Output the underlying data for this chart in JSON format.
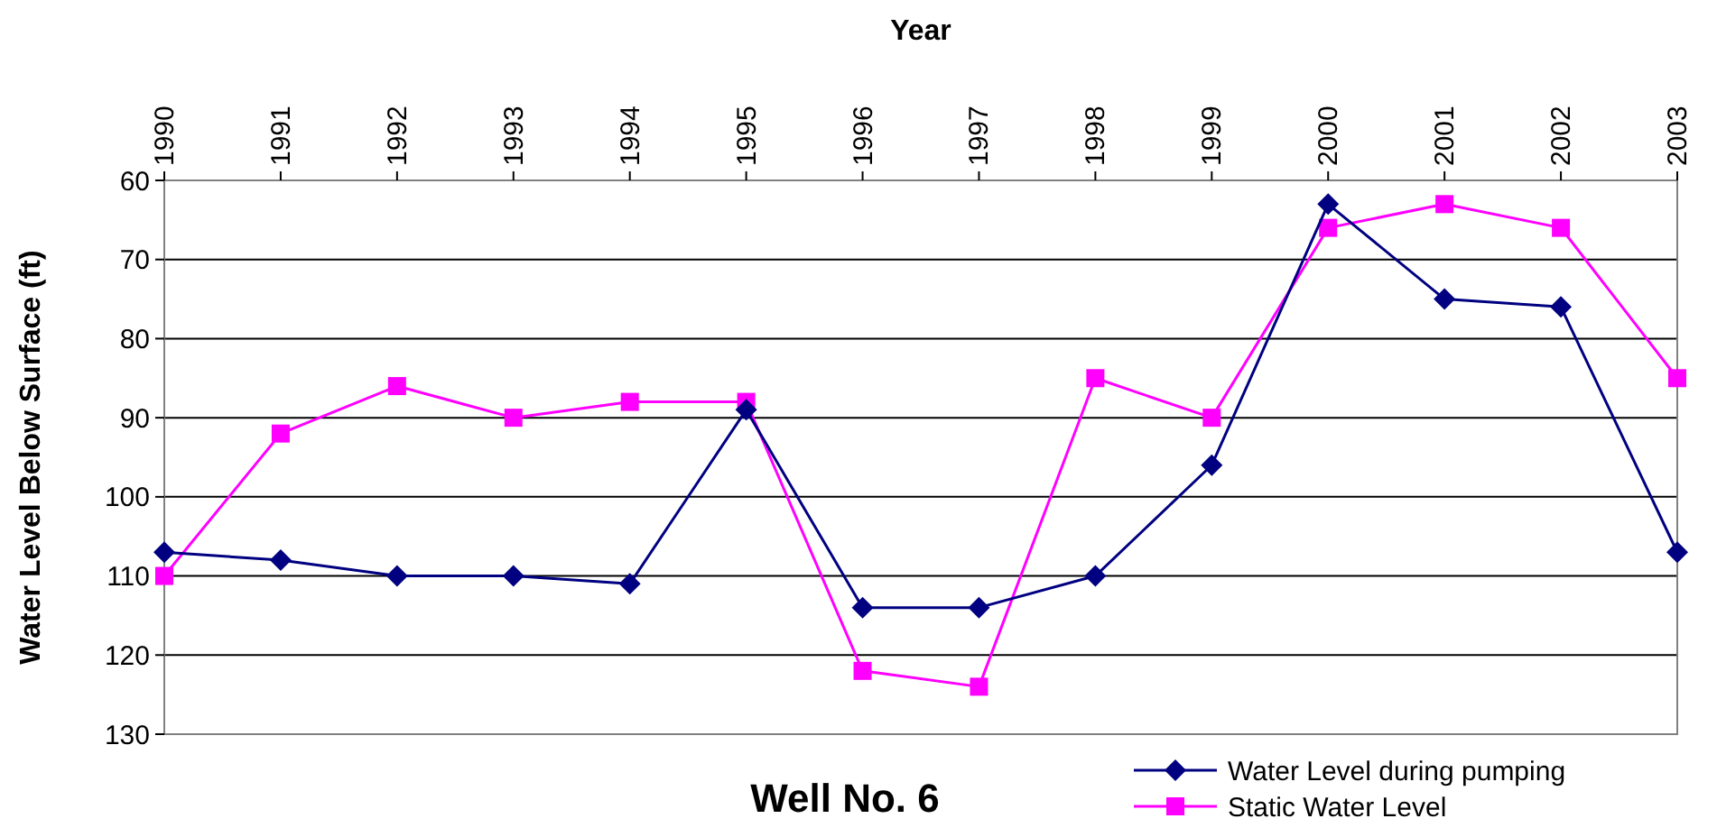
{
  "chart_data": {
    "type": "line",
    "title": "Well No. 6",
    "xlabel": "Year",
    "ylabel": "Water Level Below Surface (ft)",
    "categories": [
      "1990",
      "1991",
      "1992",
      "1993",
      "1994",
      "1995",
      "1996",
      "1997",
      "1998",
      "1999",
      "2000",
      "2001",
      "2002",
      "2003"
    ],
    "series": [
      {
        "name": "Water Level during pumping",
        "color": "#000080",
        "marker": "diamond",
        "values": [
          107,
          108,
          110,
          110,
          111,
          89,
          114,
          114,
          110,
          96,
          63,
          75,
          76,
          107
        ]
      },
      {
        "name": "Static Water Level",
        "color": "#ff00ff",
        "marker": "square",
        "values": [
          110,
          92,
          86,
          90,
          88,
          88,
          122,
          124,
          85,
          90,
          66,
          63,
          66,
          85
        ]
      }
    ],
    "ylim": [
      130,
      60
    ],
    "yticks": [
      60,
      70,
      80,
      90,
      100,
      110,
      120,
      130
    ],
    "grid": "y",
    "legend": "bottom right"
  }
}
